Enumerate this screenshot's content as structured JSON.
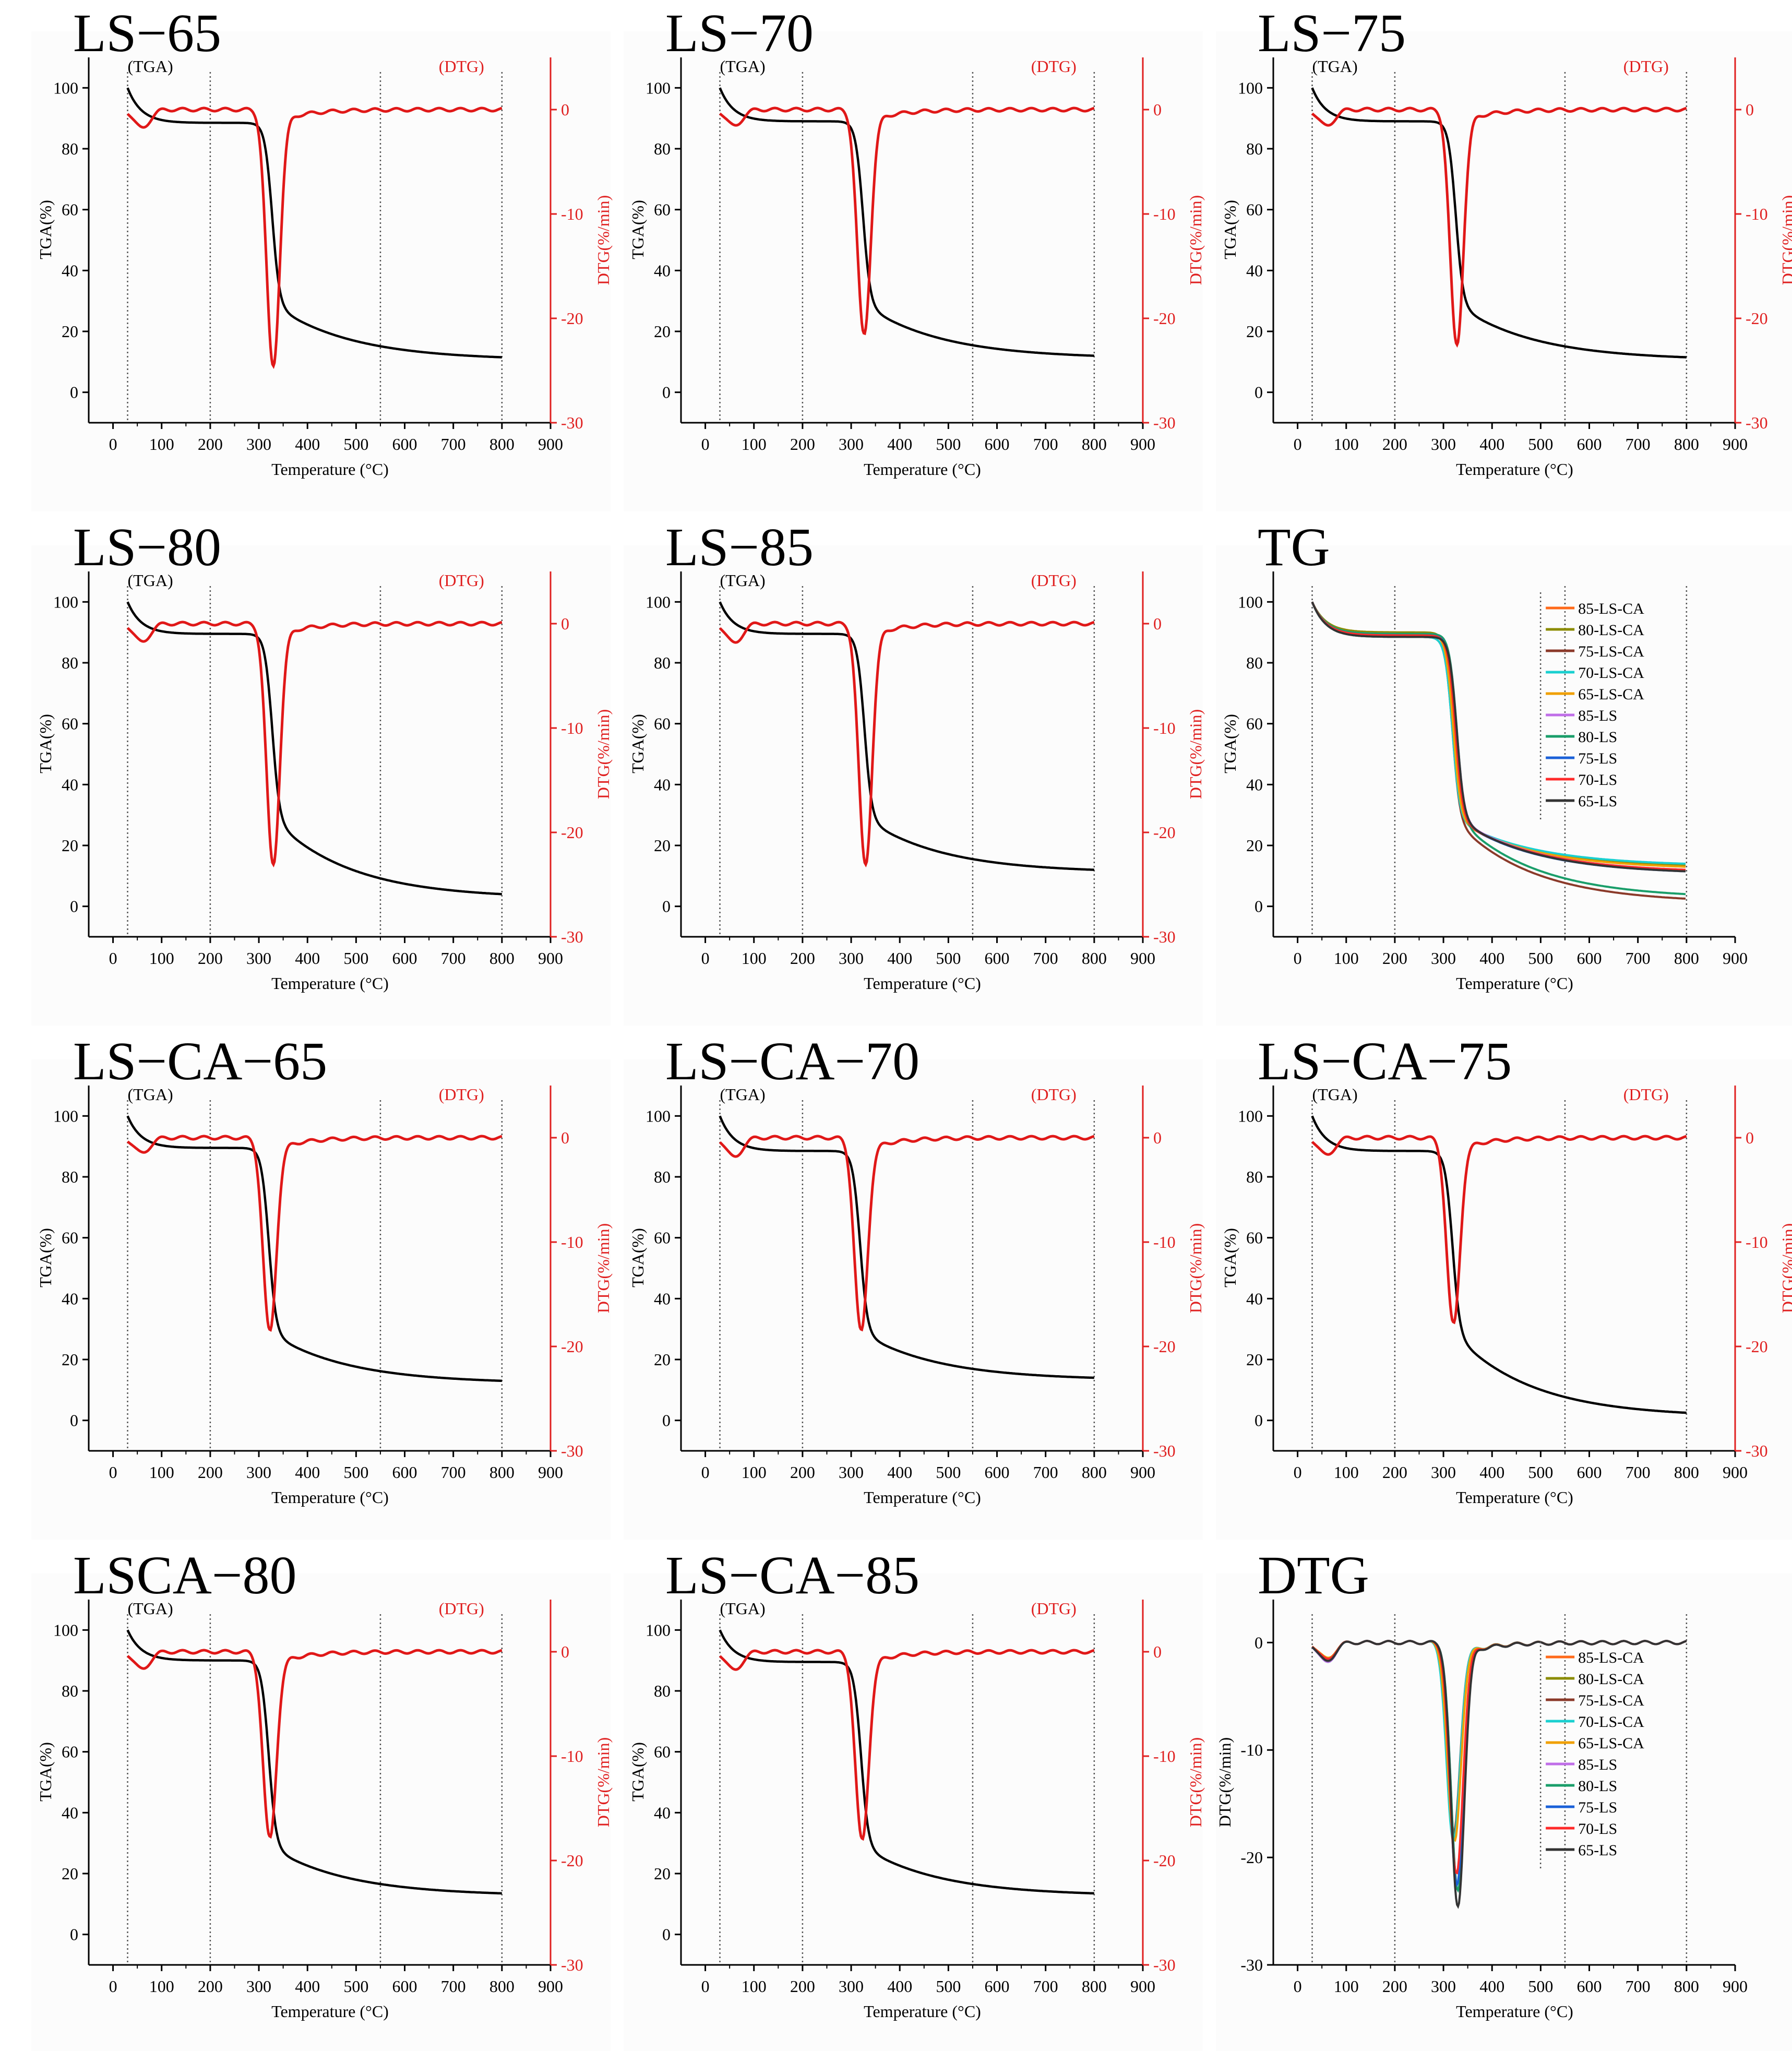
{
  "figure": {
    "panels": [
      {
        "title": "LS−65",
        "kind": "dual",
        "dtg_peak": -24.5,
        "tga_end": 11.5,
        "onset": 305,
        "tga_plateau": 88.5,
        "dtg_minlow": -1.8
      },
      {
        "title": "LS−70",
        "kind": "dual",
        "dtg_peak": -21.5,
        "tga_end": 12,
        "onset": 302,
        "tga_plateau": 89,
        "dtg_minlow": -1.6
      },
      {
        "title": "LS−75",
        "kind": "dual",
        "dtg_peak": -22.5,
        "tga_end": 11.5,
        "onset": 303,
        "tga_plateau": 89,
        "dtg_minlow": -1.6
      },
      {
        "title": "LS−80",
        "kind": "dual",
        "dtg_peak": -23.0,
        "tga_end": 4,
        "onset": 305,
        "tga_plateau": 89.5,
        "dtg_minlow": -1.8
      },
      {
        "title": "LS−85",
        "kind": "dual",
        "dtg_peak": -23.0,
        "tga_end": 12,
        "onset": 305,
        "tga_plateau": 89.5,
        "dtg_minlow": -1.9
      },
      {
        "title": "TG",
        "kind": "tg"
      },
      {
        "title": "LS−CA−65",
        "kind": "dual",
        "dtg_peak": -18.5,
        "tga_end": 13,
        "onset": 298,
        "tga_plateau": 89.5,
        "dtg_minlow": -1.5
      },
      {
        "title": "LS−CA−70",
        "kind": "dual",
        "dtg_peak": -18.5,
        "tga_end": 14,
        "onset": 296,
        "tga_plateau": 88.5,
        "dtg_minlow": -1.9
      },
      {
        "title": "LS−CA−75",
        "kind": "dual",
        "dtg_peak": -17.8,
        "tga_end": 2.5,
        "onset": 296,
        "tga_plateau": 88.5,
        "dtg_minlow": -1.7
      },
      {
        "title": "LSCA−80",
        "kind": "dual",
        "dtg_peak": -17.8,
        "tga_end": 13.5,
        "onset": 298,
        "tga_plateau": 90,
        "dtg_minlow": -1.7
      },
      {
        "title": "LS−CA−85",
        "kind": "dual",
        "dtg_peak": -18.0,
        "tga_end": 13.5,
        "onset": 298,
        "tga_plateau": 89.5,
        "dtg_minlow": -1.8
      },
      {
        "title": "DTG",
        "kind": "dtg"
      }
    ]
  },
  "chart_data": {
    "type": "line",
    "title": "TGA and DTG curves of LS and LS-CA samples",
    "xlabel": "Temperature (°C)",
    "xlim": [
      -50,
      900
    ],
    "xticks": [
      0,
      100,
      200,
      300,
      400,
      500,
      600,
      700,
      800,
      900
    ],
    "tga_ylabel": "TGA(%)",
    "tga_ylim": [
      -10,
      110
    ],
    "tga_yticks": [
      0,
      20,
      40,
      60,
      80,
      100
    ],
    "dtg_ylabel": "DTG(%/min)",
    "dtg_ylim": [
      -30,
      5
    ],
    "dtg_yticks": [
      0,
      -10,
      -20,
      -30
    ],
    "dotted_lines_x": [
      30,
      200,
      550,
      800
    ],
    "tga_annotation": "(TGA)",
    "dtg_annotation": "(DTG)",
    "series": [
      {
        "name": "85-LS-CA",
        "color": "#ff6a1a",
        "dtg_peak": -18.0,
        "tga_end": 13.5
      },
      {
        "name": "80-LS-CA",
        "color": "#8b8c00",
        "dtg_peak": -17.8,
        "tga_end": 13.5
      },
      {
        "name": "75-LS-CA",
        "color": "#8b3a2a",
        "dtg_peak": -17.8,
        "tga_end": 2.5
      },
      {
        "name": "70-LS-CA",
        "color": "#1ad0d0",
        "dtg_peak": -18.5,
        "tga_end": 14
      },
      {
        "name": "65-LS-CA",
        "color": "#f0a000",
        "dtg_peak": -18.5,
        "tga_end": 13
      },
      {
        "name": "85-LS",
        "color": "#c06ee8",
        "dtg_peak": -23.0,
        "tga_end": 12
      },
      {
        "name": "80-LS",
        "color": "#1a9e6a",
        "dtg_peak": -23.0,
        "tga_end": 4
      },
      {
        "name": "75-LS",
        "color": "#1a60d8",
        "dtg_peak": -22.5,
        "tga_end": 11.5
      },
      {
        "name": "70-LS",
        "color": "#ff2a2a",
        "dtg_peak": -21.5,
        "tga_end": 12
      },
      {
        "name": "65-LS",
        "color": "#333333",
        "dtg_peak": -24.5,
        "tga_end": 11.5
      }
    ]
  }
}
